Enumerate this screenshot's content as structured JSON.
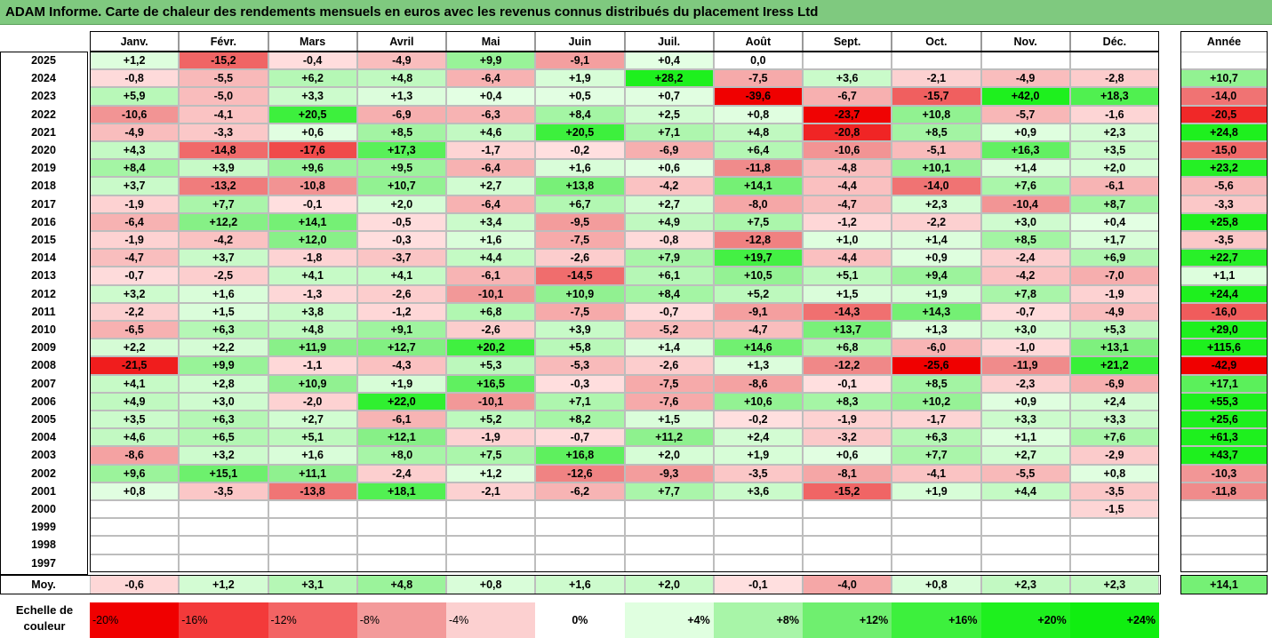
{
  "title": "ADAM Informe. Carte de chaleur des rendements mensuels en euros avec les revenus connus distribués du placement Iress Ltd",
  "months": [
    "Janv.",
    "Févr.",
    "Mars",
    "Avril",
    "Mai",
    "Juin",
    "Juil.",
    "Août",
    "Sept.",
    "Oct.",
    "Nov.",
    "Déc."
  ],
  "year_header": "Année",
  "avg_label": "Moy.",
  "legend_label": "Echelle de couleur",
  "legend": [
    {
      "label": "-20%",
      "value": -20
    },
    {
      "label": "-16%",
      "value": -16
    },
    {
      "label": "-12%",
      "value": -12
    },
    {
      "label": "-8%",
      "value": -8
    },
    {
      "label": "-4%",
      "value": -4
    },
    {
      "label": "0%",
      "value": 0
    },
    {
      "label": "+4%",
      "value": 4
    },
    {
      "label": "+8%",
      "value": 8
    },
    {
      "label": "+12%",
      "value": 12
    },
    {
      "label": "+16%",
      "value": 16
    },
    {
      "label": "+20%",
      "value": 20
    },
    {
      "label": "+24%",
      "value": 24
    }
  ],
  "chart_data": {
    "type": "heatmap",
    "rows": [
      {
        "year": "2025",
        "months": [
          "+1,2",
          "-15,2",
          "-0,4",
          "-4,9",
          "+9,9",
          "-9,1",
          "+0,4",
          "0,0",
          "",
          "",
          "",
          ""
        ],
        "annual": ""
      },
      {
        "year": "2024",
        "months": [
          "-0,8",
          "-5,5",
          "+6,2",
          "+4,8",
          "-6,4",
          "+1,9",
          "+28,2",
          "-7,5",
          "+3,6",
          "-2,1",
          "-4,9",
          "-2,8"
        ],
        "annual": "+10,7"
      },
      {
        "year": "2023",
        "months": [
          "+5,9",
          "-5,0",
          "+3,3",
          "+1,3",
          "+0,4",
          "+0,5",
          "+0,7",
          "-39,6",
          "-6,7",
          "-15,7",
          "+42,0",
          "+18,3"
        ],
        "annual": "-14,0"
      },
      {
        "year": "2022",
        "months": [
          "-10,6",
          "-4,1",
          "+20,5",
          "-6,9",
          "-6,3",
          "+8,4",
          "+2,5",
          "+0,8",
          "-23,7",
          "+10,8",
          "-5,7",
          "-1,6"
        ],
        "annual": "-20,5"
      },
      {
        "year": "2021",
        "months": [
          "-4,9",
          "-3,3",
          "+0,6",
          "+8,5",
          "+4,6",
          "+20,5",
          "+7,1",
          "+4,8",
          "-20,8",
          "+8,5",
          "+0,9",
          "+2,3"
        ],
        "annual": "+24,8"
      },
      {
        "year": "2020",
        "months": [
          "+4,3",
          "-14,8",
          "-17,6",
          "+17,3",
          "-1,7",
          "-0,2",
          "-6,9",
          "+6,4",
          "-10,6",
          "-5,1",
          "+16,3",
          "+3,5"
        ],
        "annual": "-15,0"
      },
      {
        "year": "2019",
        "months": [
          "+8,4",
          "+3,9",
          "+9,6",
          "+9,5",
          "-6,4",
          "+1,6",
          "+0,6",
          "-11,8",
          "-4,8",
          "+10,1",
          "+1,4",
          "+2,0"
        ],
        "annual": "+23,2"
      },
      {
        "year": "2018",
        "months": [
          "+3,7",
          "-13,2",
          "-10,8",
          "+10,7",
          "+2,7",
          "+13,8",
          "-4,2",
          "+14,1",
          "-4,4",
          "-14,0",
          "+7,6",
          "-6,1"
        ],
        "annual": "-5,6"
      },
      {
        "year": "2017",
        "months": [
          "-1,9",
          "+7,7",
          "-0,1",
          "+2,0",
          "-6,4",
          "+6,7",
          "+2,7",
          "-8,0",
          "-4,7",
          "+2,3",
          "-10,4",
          "+8,7"
        ],
        "annual": "-3,3"
      },
      {
        "year": "2016",
        "months": [
          "-6,4",
          "+12,2",
          "+14,1",
          "-0,5",
          "+3,4",
          "-9,5",
          "+4,9",
          "+7,5",
          "-1,2",
          "-2,2",
          "+3,0",
          "+0,4"
        ],
        "annual": "+25,8"
      },
      {
        "year": "2015",
        "months": [
          "-1,9",
          "-4,2",
          "+12,0",
          "-0,3",
          "+1,6",
          "-7,5",
          "-0,8",
          "-12,8",
          "+1,0",
          "+1,4",
          "+8,5",
          "+1,7"
        ],
        "annual": "-3,5"
      },
      {
        "year": "2014",
        "months": [
          "-4,7",
          "+3,7",
          "-1,8",
          "-3,7",
          "+4,4",
          "-2,6",
          "+7,9",
          "+19,7",
          "-4,4",
          "+0,9",
          "-2,4",
          "+6,9"
        ],
        "annual": "+22,7"
      },
      {
        "year": "2013",
        "months": [
          "-0,7",
          "-2,5",
          "+4,1",
          "+4,1",
          "-6,1",
          "-14,5",
          "+6,1",
          "+10,5",
          "+5,1",
          "+9,4",
          "-4,2",
          "-7,0"
        ],
        "annual": "+1,1"
      },
      {
        "year": "2012",
        "months": [
          "+3,2",
          "+1,6",
          "-1,3",
          "-2,6",
          "-10,1",
          "+10,9",
          "+8,4",
          "+5,2",
          "+1,5",
          "+1,9",
          "+7,8",
          "-1,9"
        ],
        "annual": "+24,4"
      },
      {
        "year": "2011",
        "months": [
          "-2,2",
          "+1,5",
          "+3,8",
          "-1,2",
          "+6,8",
          "-7,5",
          "-0,7",
          "-9,1",
          "-14,3",
          "+14,3",
          "-0,7",
          "-4,9"
        ],
        "annual": "-16,0"
      },
      {
        "year": "2010",
        "months": [
          "-6,5",
          "+6,3",
          "+4,8",
          "+9,1",
          "-2,6",
          "+3,9",
          "-5,2",
          "-4,7",
          "+13,7",
          "+1,3",
          "+3,0",
          "+5,3"
        ],
        "annual": "+29,0"
      },
      {
        "year": "2009",
        "months": [
          "+2,2",
          "+2,2",
          "+11,9",
          "+12,7",
          "+20,2",
          "+5,8",
          "+1,4",
          "+14,6",
          "+6,8",
          "-6,0",
          "-1,0",
          "+13,1"
        ],
        "annual": "+115,6"
      },
      {
        "year": "2008",
        "months": [
          "-21,5",
          "+9,9",
          "-1,1",
          "-4,3",
          "+5,3",
          "-5,3",
          "-2,6",
          "+1,3",
          "-12,2",
          "-25,6",
          "-11,9",
          "+21,2"
        ],
        "annual": "-42,9"
      },
      {
        "year": "2007",
        "months": [
          "+4,1",
          "+2,8",
          "+10,9",
          "+1,9",
          "+16,5",
          "-0,3",
          "-7,5",
          "-8,6",
          "-0,1",
          "+8,5",
          "-2,3",
          "-6,9"
        ],
        "annual": "+17,1"
      },
      {
        "year": "2006",
        "months": [
          "+4,9",
          "+3,0",
          "-2,0",
          "+22,0",
          "-10,1",
          "+7,1",
          "-7,6",
          "+10,6",
          "+8,3",
          "+10,2",
          "+0,9",
          "+2,4"
        ],
        "annual": "+55,3"
      },
      {
        "year": "2005",
        "months": [
          "+3,5",
          "+6,3",
          "+2,7",
          "-6,1",
          "+5,2",
          "+8,2",
          "+1,5",
          "-0,2",
          "-1,9",
          "-1,7",
          "+3,3",
          "+3,3"
        ],
        "annual": "+25,6"
      },
      {
        "year": "2004",
        "months": [
          "+4,6",
          "+6,5",
          "+5,1",
          "+12,1",
          "-1,9",
          "-0,7",
          "+11,2",
          "+2,4",
          "-3,2",
          "+6,3",
          "+1,1",
          "+7,6"
        ],
        "annual": "+61,3"
      },
      {
        "year": "2003",
        "months": [
          "-8,6",
          "+3,2",
          "+1,6",
          "+8,0",
          "+7,5",
          "+16,8",
          "+2,0",
          "+1,9",
          "+0,6",
          "+7,7",
          "+2,7",
          "-2,9"
        ],
        "annual": "+43,7"
      },
      {
        "year": "2002",
        "months": [
          "+9,6",
          "+15,1",
          "+11,1",
          "-2,4",
          "+1,2",
          "-12,6",
          "-9,3",
          "-3,5",
          "-8,1",
          "-4,1",
          "-5,5",
          "+0,8"
        ],
        "annual": "-10,3"
      },
      {
        "year": "2001",
        "months": [
          "+0,8",
          "-3,5",
          "-13,8",
          "+18,1",
          "-2,1",
          "-6,2",
          "+7,7",
          "+3,6",
          "-15,2",
          "+1,9",
          "+4,4",
          "-3,5"
        ],
        "annual": "-11,8"
      },
      {
        "year": "2000",
        "months": [
          "",
          "",
          "",
          "",
          "",
          "",
          "",
          "",
          "",
          "",
          "",
          "-1,5"
        ],
        "annual": ""
      },
      {
        "year": "1999",
        "months": [
          "",
          "",
          "",
          "",
          "",
          "",
          "",
          "",
          "",
          "",
          "",
          ""
        ],
        "annual": ""
      },
      {
        "year": "1998",
        "months": [
          "",
          "",
          "",
          "",
          "",
          "",
          "",
          "",
          "",
          "",
          "",
          ""
        ],
        "annual": ""
      },
      {
        "year": "1997",
        "months": [
          "",
          "",
          "",
          "",
          "",
          "",
          "",
          "",
          "",
          "",
          "",
          ""
        ],
        "annual": ""
      }
    ],
    "average": {
      "months": [
        "-0,6",
        "+1,2",
        "+3,1",
        "+4,8",
        "+0,8",
        "+1,6",
        "+2,0",
        "-0,1",
        "-4,0",
        "+0,8",
        "+2,3",
        "+2,3"
      ],
      "annual": "+14,1"
    }
  }
}
